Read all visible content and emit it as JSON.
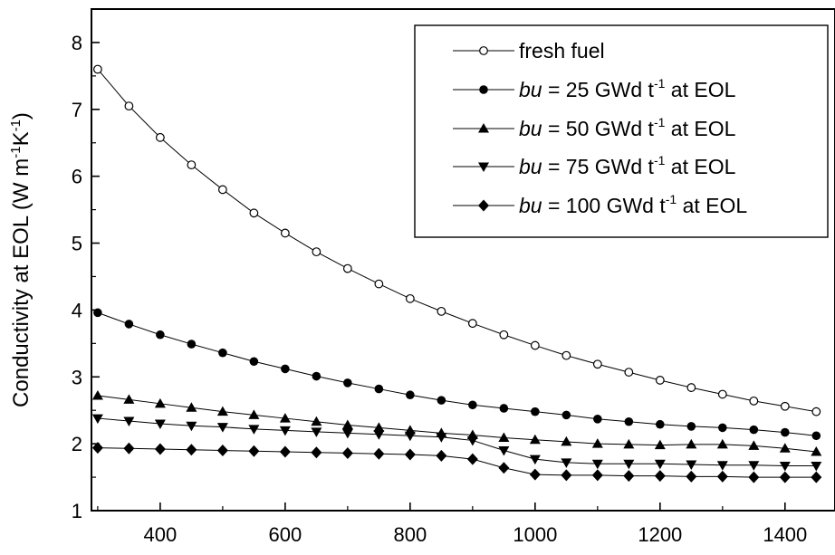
{
  "chart_data": {
    "type": "line",
    "title": "",
    "xlabel": "",
    "ylabel_parts": [
      "Conductivity at EOL (W m",
      "-1",
      "K",
      "-1",
      ")"
    ],
    "xlim": [
      290,
      1480
    ],
    "ylim": [
      1,
      8.5
    ],
    "xticks": [
      400,
      600,
      800,
      1000,
      1200,
      1400
    ],
    "yticks": [
      1,
      2,
      3,
      4,
      5,
      6,
      7,
      8
    ],
    "x": [
      300,
      350,
      400,
      450,
      500,
      550,
      600,
      650,
      700,
      750,
      800,
      850,
      900,
      950,
      1000,
      1050,
      1100,
      1150,
      1200,
      1250,
      1300,
      1350,
      1400,
      1450
    ],
    "series": [
      {
        "label_prefix": "fresh fuel",
        "label_suffix": "",
        "marker": "circle-open",
        "values": [
          7.6,
          7.05,
          6.58,
          6.17,
          5.8,
          5.45,
          5.15,
          4.87,
          4.62,
          4.39,
          4.17,
          3.98,
          3.8,
          3.63,
          3.47,
          3.32,
          3.19,
          3.07,
          2.95,
          2.84,
          2.74,
          2.64,
          2.56,
          2.48
        ]
      },
      {
        "label_prefix": "bu",
        "label_mid": " = 25  GWd t",
        "label_sup": "-1",
        "label_suffix": " at EOL",
        "marker": "circle-filled",
        "values": [
          3.96,
          3.79,
          3.63,
          3.49,
          3.36,
          3.23,
          3.12,
          3.01,
          2.91,
          2.82,
          2.73,
          2.65,
          2.58,
          2.53,
          2.48,
          2.43,
          2.37,
          2.33,
          2.29,
          2.26,
          2.24,
          2.21,
          2.17,
          2.12
        ]
      },
      {
        "label_prefix": "bu",
        "label_mid": " = 50  GWd t",
        "label_sup": "-1",
        "label_suffix": " at EOL",
        "marker": "triangle-up",
        "values": [
          2.72,
          2.66,
          2.6,
          2.54,
          2.48,
          2.43,
          2.38,
          2.33,
          2.28,
          2.24,
          2.2,
          2.16,
          2.13,
          2.09,
          2.06,
          2.03,
          2.0,
          1.99,
          1.98,
          1.99,
          1.99,
          1.97,
          1.93,
          1.88
        ]
      },
      {
        "label_prefix": "bu",
        "label_mid": " = 75  GWd t",
        "label_sup": "-1",
        "label_suffix": " at EOL",
        "marker": "triangle-down",
        "values": [
          2.38,
          2.34,
          2.3,
          2.27,
          2.25,
          2.22,
          2.2,
          2.18,
          2.16,
          2.14,
          2.12,
          2.1,
          2.05,
          1.9,
          1.77,
          1.72,
          1.7,
          1.7,
          1.7,
          1.69,
          1.68,
          1.68,
          1.67,
          1.67
        ]
      },
      {
        "label_prefix": "bu",
        "label_mid": " = 100 GWd t",
        "label_sup": "-1",
        "label_suffix": " at EOL",
        "marker": "diamond",
        "values": [
          1.94,
          1.93,
          1.92,
          1.91,
          1.9,
          1.89,
          1.88,
          1.87,
          1.86,
          1.85,
          1.84,
          1.82,
          1.77,
          1.64,
          1.54,
          1.53,
          1.53,
          1.52,
          1.52,
          1.51,
          1.51,
          1.5,
          1.5,
          1.5
        ]
      }
    ],
    "legend_position": "top-right",
    "grid": false
  }
}
